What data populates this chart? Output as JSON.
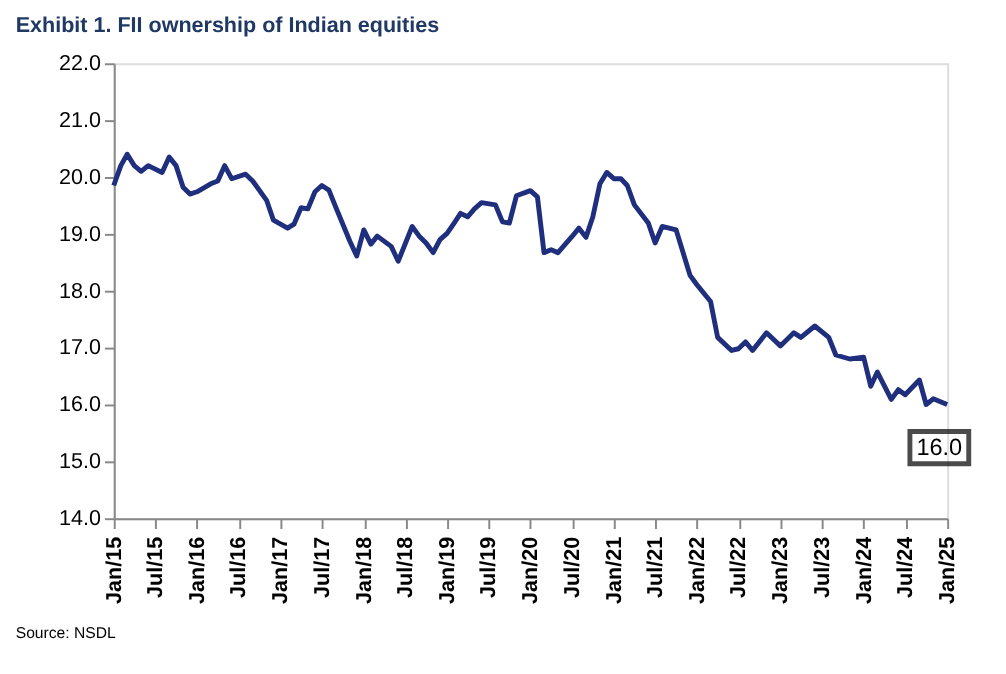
{
  "chart_data": {
    "type": "line",
    "title": "Exhibit 1. FII ownership of Indian equities",
    "x": [
      "2015-01",
      "2015-02",
      "2015-03",
      "2015-04",
      "2015-05",
      "2015-06",
      "2015-08",
      "2015-09",
      "2015-10",
      "2015-11",
      "2015-12",
      "2016-01",
      "2016-03",
      "2016-04",
      "2016-05",
      "2016-06",
      "2016-08",
      "2016-09",
      "2016-11",
      "2016-12",
      "2017-02",
      "2017-03",
      "2017-04",
      "2017-05",
      "2017-06",
      "2017-07",
      "2017-08",
      "2017-09",
      "2017-11",
      "2017-12",
      "2018-01",
      "2018-02",
      "2018-03",
      "2018-05",
      "2018-06",
      "2018-08",
      "2018-09",
      "2018-10",
      "2018-11",
      "2018-12",
      "2019-01",
      "2019-02",
      "2019-03",
      "2019-04",
      "2019-05",
      "2019-06",
      "2019-08",
      "2019-09",
      "2019-10",
      "2019-11",
      "2020-01",
      "2020-02",
      "2020-03",
      "2020-04",
      "2020-05",
      "2020-07",
      "2020-08",
      "2020-09",
      "2020-10",
      "2020-11",
      "2020-12",
      "2021-01",
      "2021-02",
      "2021-03",
      "2021-04",
      "2021-06",
      "2021-07",
      "2021-08",
      "2021-10",
      "2021-12",
      "2022-01",
      "2022-03",
      "2022-04",
      "2022-06",
      "2022-07",
      "2022-08",
      "2022-09",
      "2022-11",
      "2023-01",
      "2023-03",
      "2023-04",
      "2023-06",
      "2023-08",
      "2023-09",
      "2023-11",
      "2024-01",
      "2024-02",
      "2024-03",
      "2024-05",
      "2024-06",
      "2024-07",
      "2024-09",
      "2024-10",
      "2024-11",
      "2025-01"
    ],
    "series": [
      {
        "color": "#1f2f7d",
        "values": [
          19.85,
          20.2,
          20.4,
          20.2,
          20.1,
          20.2,
          20.08,
          20.35,
          20.2,
          19.82,
          19.7,
          19.74,
          19.88,
          19.93,
          20.2,
          19.97,
          20.05,
          19.93,
          19.59,
          19.24,
          19.1,
          19.17,
          19.46,
          19.44,
          19.74,
          19.85,
          19.77,
          19.46,
          18.87,
          18.61,
          19.07,
          18.82,
          18.96,
          18.78,
          18.52,
          19.13,
          18.96,
          18.84,
          18.67,
          18.9,
          19.01,
          19.19,
          19.36,
          19.3,
          19.44,
          19.55,
          19.51,
          19.21,
          19.19,
          19.67,
          19.76,
          19.65,
          18.67,
          18.72,
          18.67,
          18.95,
          19.1,
          18.94,
          19.3,
          19.88,
          20.08,
          19.97,
          19.97,
          19.85,
          19.51,
          19.19,
          18.84,
          19.13,
          19.07,
          18.27,
          18.1,
          17.81,
          17.18,
          16.95,
          16.98,
          17.1,
          16.95,
          17.26,
          17.03,
          17.26,
          17.18,
          17.38,
          17.18,
          16.87,
          16.8,
          16.83,
          16.32,
          16.57,
          16.09,
          16.26,
          16.17,
          16.43,
          16.0,
          16.1,
          16.0
        ]
      }
    ],
    "xlim": [
      "2015-01",
      "2025-01"
    ],
    "xticks": [
      {
        "value": "2015-01",
        "label": "Jan/15"
      },
      {
        "value": "2015-07",
        "label": "Jul/15"
      },
      {
        "value": "2016-01",
        "label": "Jan/16"
      },
      {
        "value": "2016-07",
        "label": "Jul/16"
      },
      {
        "value": "2017-01",
        "label": "Jan/17"
      },
      {
        "value": "2017-07",
        "label": "Jul/17"
      },
      {
        "value": "2018-01",
        "label": "Jan/18"
      },
      {
        "value": "2018-07",
        "label": "Jul/18"
      },
      {
        "value": "2019-01",
        "label": "Jan/19"
      },
      {
        "value": "2019-07",
        "label": "Jul/19"
      },
      {
        "value": "2020-01",
        "label": "Jan/20"
      },
      {
        "value": "2020-07",
        "label": "Jul/20"
      },
      {
        "value": "2021-01",
        "label": "Jan/21"
      },
      {
        "value": "2021-07",
        "label": "Jul/21"
      },
      {
        "value": "2022-01",
        "label": "Jan/22"
      },
      {
        "value": "2022-07",
        "label": "Jul/22"
      },
      {
        "value": "2023-01",
        "label": "Jan/23"
      },
      {
        "value": "2023-07",
        "label": "Jul/23"
      },
      {
        "value": "2024-01",
        "label": "Jan/24"
      },
      {
        "value": "2024-07",
        "label": "Jul/24"
      },
      {
        "value": "2025-01",
        "label": "Jan/25"
      }
    ],
    "ylim": [
      14,
      22
    ],
    "yticks": [
      {
        "value": 14,
        "label": "14.0"
      },
      {
        "value": 15,
        "label": "15.0"
      },
      {
        "value": 16,
        "label": "16.0"
      },
      {
        "value": 17,
        "label": "17.0"
      },
      {
        "value": 18,
        "label": "18.0"
      },
      {
        "value": 19,
        "label": "19.0"
      },
      {
        "value": 20,
        "label": "20.0"
      },
      {
        "value": 21,
        "label": "21.0"
      },
      {
        "value": 22,
        "label": "22.0"
      }
    ],
    "grid": false,
    "legend": false,
    "line_style": "solid",
    "marker": "none",
    "annotations": [
      {
        "text": "16.0",
        "x": "2025-01",
        "y": 16.0
      },
      "Source: NSDL"
    ]
  }
}
